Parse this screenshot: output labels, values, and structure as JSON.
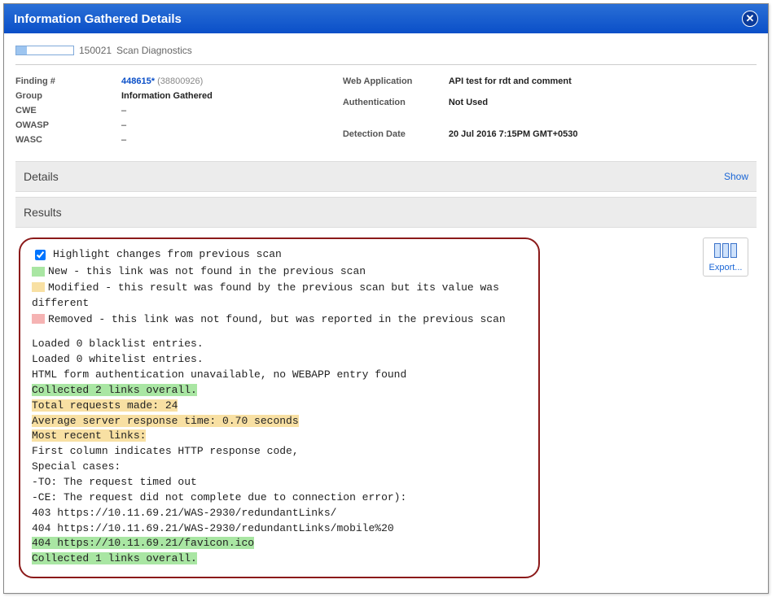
{
  "dialog": {
    "title": "Information Gathered Details"
  },
  "scan": {
    "qid": "150021",
    "name": "Scan Diagnostics"
  },
  "meta_left": {
    "finding_label": "Finding #",
    "finding_id": "448615*",
    "finding_sub": "(38800926)",
    "group_label": "Group",
    "group_val": "Information Gathered",
    "cwe_label": "CWE",
    "cwe_val": "–",
    "owasp_label": "OWASP",
    "owasp_val": "–",
    "wasc_label": "WASC",
    "wasc_val": "–"
  },
  "meta_right": {
    "webapp_label": "Web Application",
    "webapp_val": "API test for rdt and comment",
    "auth_label": "Authentication",
    "auth_val": "Not Used",
    "det_label": "Detection Date",
    "det_val": "20 Jul 2016 7:15PM GMT+0530"
  },
  "sections": {
    "details": "Details",
    "show": "Show",
    "results": "Results"
  },
  "highlight": {
    "checkbox_label": "Highlight changes from previous scan",
    "new": "New - this link was not found in the previous scan",
    "modified": "Modified - this result was found by the previous scan but its value was different",
    "removed": "Removed - this link was not found, but was reported in the previous scan"
  },
  "diag_lines": [
    {
      "t": "Loaded 0 blacklist entries."
    },
    {
      "t": "Loaded 0 whitelist entries."
    },
    {
      "t": "HTML form authentication unavailable, no WEBAPP entry found"
    },
    {
      "t": "Collected 2 links overall.",
      "hl": "green"
    },
    {
      "t": "Total requests made: 24",
      "hl": "yellow"
    },
    {
      "t": "Average server response time: 0.70 seconds",
      "hl": "yellow"
    },
    {
      "t": "Most recent links:",
      "hl": "yellow"
    },
    {
      "t": "First column indicates HTTP response code,"
    },
    {
      "t": "Special cases:"
    },
    {
      "t": "-TO: The request timed out"
    },
    {
      "t": "-CE: The request did not complete due to connection error):"
    },
    {
      "t": "403 https://10.11.69.21/WAS-2930/redundantLinks/"
    },
    {
      "t": "404 https://10.11.69.21/WAS-2930/redundantLinks/mobile%20"
    },
    {
      "t": "404 https://10.11.69.21/favicon.ico",
      "hl": "green"
    },
    {
      "t": "Collected 1 links overall.",
      "hl": "green"
    }
  ],
  "export": {
    "label": "Export..."
  },
  "colors": {
    "new": "#a9e6a3",
    "modified": "#f8e0a3",
    "removed": "#f5b3b3",
    "callout_border": "#8b1a1a",
    "titlebar_from": "#2a6fd6",
    "titlebar_to": "#0a4fc8"
  }
}
